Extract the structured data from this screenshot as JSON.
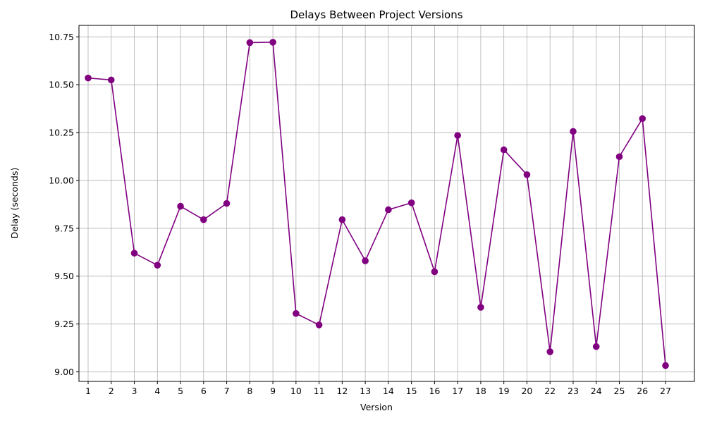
{
  "chart_data": {
    "type": "line",
    "title": "Delays Between Project Versions",
    "xlabel": "Version",
    "ylabel": "Delay (seconds)",
    "categories": [
      "1",
      "2",
      "3",
      "4",
      "5",
      "6",
      "7",
      "8",
      "9",
      "10",
      "11",
      "12",
      "13",
      "14",
      "15",
      "16",
      "17",
      "18",
      "19",
      "20",
      "22",
      "23",
      "24",
      "25",
      "26",
      "27"
    ],
    "series": [
      {
        "values": [
          10.535,
          10.525,
          9.62,
          9.557,
          9.865,
          9.795,
          9.88,
          10.72,
          10.722,
          9.305,
          9.245,
          9.795,
          9.58,
          9.847,
          9.883,
          9.523,
          10.235,
          9.337,
          10.16,
          10.03,
          9.105,
          10.256,
          9.132,
          10.124,
          10.323,
          9.033
        ],
        "color": "#800080",
        "marker": "circle"
      }
    ],
    "ylim": [
      8.95,
      10.81
    ],
    "yticks": [
      "9.00",
      "9.25",
      "9.50",
      "9.75",
      "10.00",
      "10.25",
      "10.50",
      "10.75"
    ],
    "grid": true,
    "legend": "none"
  }
}
